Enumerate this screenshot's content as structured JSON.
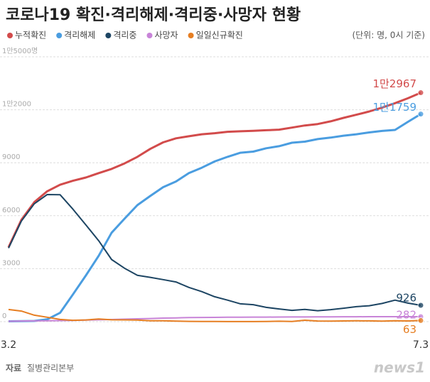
{
  "chart_data": {
    "type": "line",
    "title": "코로나19 확진·격리해제·격리중·사망자 현황",
    "unit_note": "(단위: 명, 0시 기준)",
    "source_label": "자료",
    "source": "질병관리본부",
    "logo": "news1",
    "categories": [
      "3.2",
      null,
      null,
      null,
      null,
      null,
      null,
      null,
      null,
      null,
      null,
      null,
      null,
      null,
      null,
      null,
      null,
      null,
      null,
      null,
      null,
      null,
      null,
      null,
      null,
      null,
      null,
      null,
      null,
      null,
      null,
      null,
      "7.3"
    ],
    "ylim": [
      0,
      15000
    ],
    "yticks": [
      0,
      3000,
      6000,
      9000,
      {
        "value": 12000,
        "label": "1만2000"
      },
      {
        "value": 15000,
        "label": "1만5000명"
      }
    ],
    "grid": true,
    "series": [
      {
        "name": "누적확진",
        "color": "#d24b4b",
        "values": [
          4212,
          5766,
          6767,
          7382,
          7755,
          7979,
          8162,
          8413,
          8652,
          8961,
          9332,
          9786,
          10156,
          10384,
          10502,
          10613,
          10674,
          10752,
          10780,
          10806,
          10840,
          10874,
          10991,
          11110,
          11190,
          11344,
          11541,
          11719,
          11902,
          12121,
          12373,
          12653,
          12967
        ],
        "value_labels": [
          null,
          null,
          null,
          null,
          null,
          null,
          null,
          null,
          null,
          null,
          null,
          null,
          null,
          null,
          null,
          null,
          null,
          null,
          null,
          null,
          null,
          null,
          null,
          null,
          null,
          null,
          null,
          null,
          null,
          null,
          null,
          null,
          "1만2967"
        ]
      },
      {
        "name": "격리해제",
        "color": "#4a9de0",
        "values": [
          22,
          30,
          41,
          130,
          500,
          1540,
          2612,
          3730,
          5033,
          5828,
          6598,
          7117,
          7616,
          7937,
          8411,
          8717,
          9072,
          9333,
          9568,
          9632,
          9821,
          9938,
          10135,
          10194,
          10340,
          10422,
          10531,
          10611,
          10718,
          10802,
          10856,
          11317,
          11759
        ],
        "value_labels": [
          null,
          null,
          null,
          null,
          null,
          null,
          null,
          null,
          null,
          null,
          null,
          null,
          null,
          null,
          null,
          null,
          null,
          null,
          null,
          null,
          null,
          null,
          null,
          null,
          null,
          null,
          null,
          null,
          null,
          null,
          null,
          null,
          "1만1759"
        ]
      },
      {
        "name": "격리중",
        "color": "#1d4563",
        "values": [
          4168,
          5700,
          6680,
          7200,
          7190,
          6370,
          5480,
          4580,
          3520,
          3030,
          2620,
          2510,
          2380,
          2250,
          1940,
          1700,
          1410,
          1220,
          1010,
          960,
          810,
          720,
          640,
          695,
          620,
          680,
          760,
          850,
          900,
          1030,
          1220,
          1050,
          926
        ]
      },
      {
        "name": "사망자",
        "color": "#c884d8",
        "values": [
          22,
          35,
          44,
          51,
          60,
          72,
          91,
          104,
          120,
          139,
          162,
          177,
          200,
          214,
          230,
          237,
          240,
          248,
          250,
          256,
          256,
          262,
          264,
          266,
          269,
          272,
          276,
          277,
          280,
          280,
          281,
          282,
          282
        ]
      },
      {
        "name": "일일신규확진",
        "color": "#e67e22",
        "values": [
          686,
          600,
          367,
          248,
          125,
          76,
          98,
          147,
          105,
          101,
          94,
          53,
          47,
          30,
          18,
          8,
          10,
          4,
          6,
          6,
          9,
          26,
          13,
          79,
          38,
          34,
          39,
          49,
          45,
          34,
          51,
          42,
          63
        ]
      }
    ]
  }
}
